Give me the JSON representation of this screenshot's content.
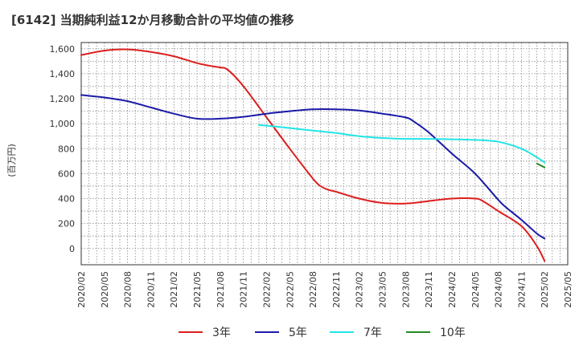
{
  "chart_data": {
    "type": "line",
    "title": "[6142]  当期純利益12か月移動合計の平均値の推移",
    "ylabel": "(百万円)",
    "xlabel": "",
    "ylim": [
      -130,
      1650
    ],
    "y_ticks": [
      0,
      200,
      400,
      600,
      800,
      1000,
      1200,
      1400,
      1600
    ],
    "y_tick_labels": [
      "0",
      "200",
      "400",
      "600",
      "800",
      "1,000",
      "1,200",
      "1,400",
      "1,600"
    ],
    "x_range": [
      "2020-02",
      "2025-05"
    ],
    "x_ticks": [
      "2020/02",
      "2020/05",
      "2020/08",
      "2020/11",
      "2021/02",
      "2021/05",
      "2021/08",
      "2021/11",
      "2022/02",
      "2022/05",
      "2022/08",
      "2022/11",
      "2023/02",
      "2023/05",
      "2023/08",
      "2023/11",
      "2024/02",
      "2024/05",
      "2024/08",
      "2024/11",
      "2025/02",
      "2025/05"
    ],
    "grid": true,
    "legend_position": "bottom",
    "series": [
      {
        "name": "3年",
        "color": "#dd1e1e",
        "x": [
          "2020-02",
          "2020-05",
          "2020-08",
          "2020-11",
          "2021-02",
          "2021-05",
          "2021-07",
          "2021-08",
          "2021-09",
          "2021-11",
          "2022-02",
          "2022-05",
          "2022-08",
          "2022-09",
          "2022-10",
          "2022-11",
          "2023-02",
          "2023-05",
          "2023-08",
          "2023-11",
          "2024-02",
          "2024-05",
          "2024-06",
          "2024-08",
          "2024-11",
          "2025-01",
          "2025-02"
        ],
        "values": [
          1550,
          1585,
          1595,
          1575,
          1540,
          1485,
          1460,
          1450,
          1430,
          1300,
          1050,
          800,
          560,
          500,
          470,
          455,
          400,
          365,
          360,
          380,
          400,
          400,
          380,
          300,
          180,
          20,
          -100
        ]
      },
      {
        "name": "5年",
        "color": "#1a1aa8",
        "x": [
          "2020-02",
          "2020-05",
          "2020-08",
          "2020-11",
          "2021-02",
          "2021-05",
          "2021-08",
          "2021-11",
          "2022-02",
          "2022-05",
          "2022-08",
          "2022-11",
          "2023-02",
          "2023-05",
          "2023-08",
          "2023-09",
          "2023-11",
          "2024-02",
          "2024-05",
          "2024-08",
          "2024-09",
          "2024-11",
          "2025-01",
          "2025-02"
        ],
        "values": [
          1230,
          1210,
          1180,
          1130,
          1080,
          1040,
          1040,
          1055,
          1080,
          1100,
          1115,
          1115,
          1105,
          1080,
          1050,
          1020,
          930,
          760,
          600,
          390,
          330,
          230,
          120,
          80
        ]
      },
      {
        "name": "7年",
        "color": "#22e5e5",
        "x": [
          "2022-01",
          "2022-05",
          "2022-08",
          "2022-11",
          "2023-02",
          "2023-05",
          "2023-08",
          "2023-11",
          "2024-02",
          "2024-05",
          "2024-08",
          "2024-11",
          "2025-01",
          "2025-02"
        ],
        "values": [
          990,
          965,
          945,
          925,
          900,
          885,
          878,
          878,
          875,
          870,
          855,
          800,
          730,
          690
        ]
      },
      {
        "name": "10年",
        "color": "#218a21",
        "x": [
          "2025-01",
          "2025-02"
        ],
        "values": [
          680,
          650
        ]
      }
    ]
  }
}
